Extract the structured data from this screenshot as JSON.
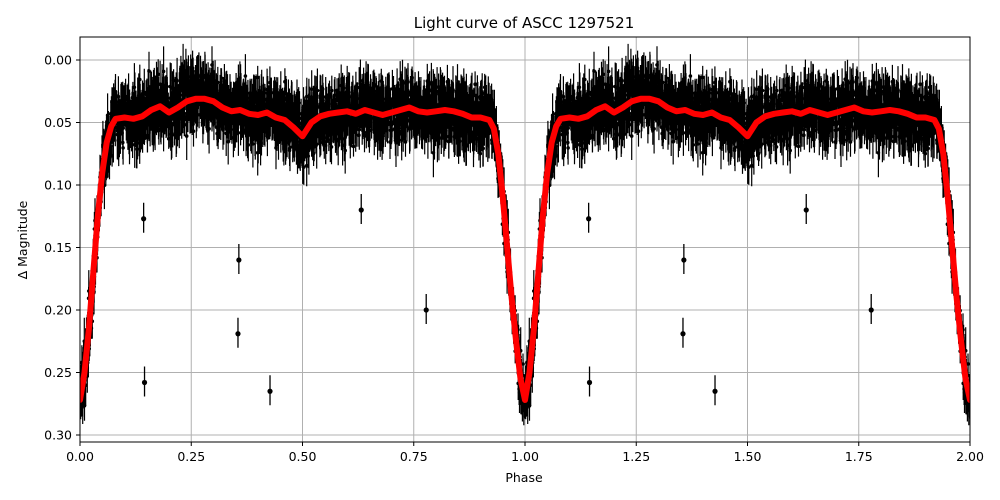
{
  "chart_data": {
    "type": "scatter",
    "title": "Light curve of ASCC 1297521",
    "xlabel": "Phase",
    "ylabel": "Δ Magnitude",
    "xlim": [
      0.0,
      2.0
    ],
    "ylim": [
      0.31,
      -0.018
    ],
    "y_inverted": true,
    "grid": true,
    "legend": null,
    "x_ticks": [
      "0.00",
      "0.25",
      "0.50",
      "0.75",
      "1.00",
      "1.25",
      "1.50",
      "1.75",
      "2.00"
    ],
    "y_ticks": [
      "0.00",
      "0.05",
      "0.10",
      "0.15",
      "0.20",
      "0.25",
      "0.30"
    ],
    "series": [
      {
        "name": "observations",
        "style": "black points with vertical error bars",
        "color": "#000000",
        "typical_scatter": 0.03,
        "outliers": [
          {
            "phase": 0.143,
            "mag": 0.127
          },
          {
            "phase": 0.145,
            "mag": 0.258
          },
          {
            "phase": 0.357,
            "mag": 0.16
          },
          {
            "phase": 0.355,
            "mag": 0.219
          },
          {
            "phase": 0.427,
            "mag": 0.265
          },
          {
            "phase": 0.632,
            "mag": 0.12
          },
          {
            "phase": 0.778,
            "mag": 0.2
          },
          {
            "phase": 1.143,
            "mag": 0.127
          },
          {
            "phase": 1.145,
            "mag": 0.258
          },
          {
            "phase": 1.357,
            "mag": 0.16
          },
          {
            "phase": 1.355,
            "mag": 0.219
          },
          {
            "phase": 1.427,
            "mag": 0.265
          },
          {
            "phase": 1.632,
            "mag": 0.12
          },
          {
            "phase": 1.778,
            "mag": 0.2
          }
        ]
      },
      {
        "name": "model (binned fit)",
        "style": "thick red line",
        "color": "#ff0000",
        "phase": [
          0.0,
          0.01,
          0.02,
          0.03,
          0.04,
          0.05,
          0.06,
          0.07,
          0.08,
          0.1,
          0.12,
          0.14,
          0.16,
          0.18,
          0.2,
          0.22,
          0.24,
          0.26,
          0.28,
          0.3,
          0.32,
          0.34,
          0.36,
          0.38,
          0.4,
          0.42,
          0.44,
          0.46,
          0.48,
          0.5,
          0.52,
          0.54,
          0.56,
          0.58,
          0.6,
          0.62,
          0.64,
          0.66,
          0.68,
          0.7,
          0.72,
          0.74,
          0.76,
          0.78,
          0.8,
          0.82,
          0.84,
          0.86,
          0.88,
          0.9,
          0.92,
          0.93,
          0.94,
          0.95,
          0.96,
          0.97,
          0.98,
          0.99,
          1.0
        ],
        "mag": [
          0.272,
          0.25,
          0.215,
          0.17,
          0.125,
          0.09,
          0.066,
          0.053,
          0.047,
          0.046,
          0.047,
          0.045,
          0.04,
          0.037,
          0.042,
          0.038,
          0.033,
          0.031,
          0.031,
          0.033,
          0.038,
          0.041,
          0.04,
          0.043,
          0.044,
          0.042,
          0.046,
          0.048,
          0.054,
          0.061,
          0.05,
          0.045,
          0.043,
          0.042,
          0.041,
          0.043,
          0.04,
          0.042,
          0.044,
          0.042,
          0.04,
          0.038,
          0.041,
          0.042,
          0.041,
          0.04,
          0.041,
          0.043,
          0.046,
          0.046,
          0.048,
          0.055,
          0.075,
          0.11,
          0.15,
          0.19,
          0.225,
          0.255,
          0.272
        ]
      }
    ]
  },
  "figure": {
    "colors": {
      "points": "#000000",
      "model": "#ff0000",
      "grid": "#b0b0b0",
      "axes": "#000000",
      "background": "#ffffff"
    }
  }
}
